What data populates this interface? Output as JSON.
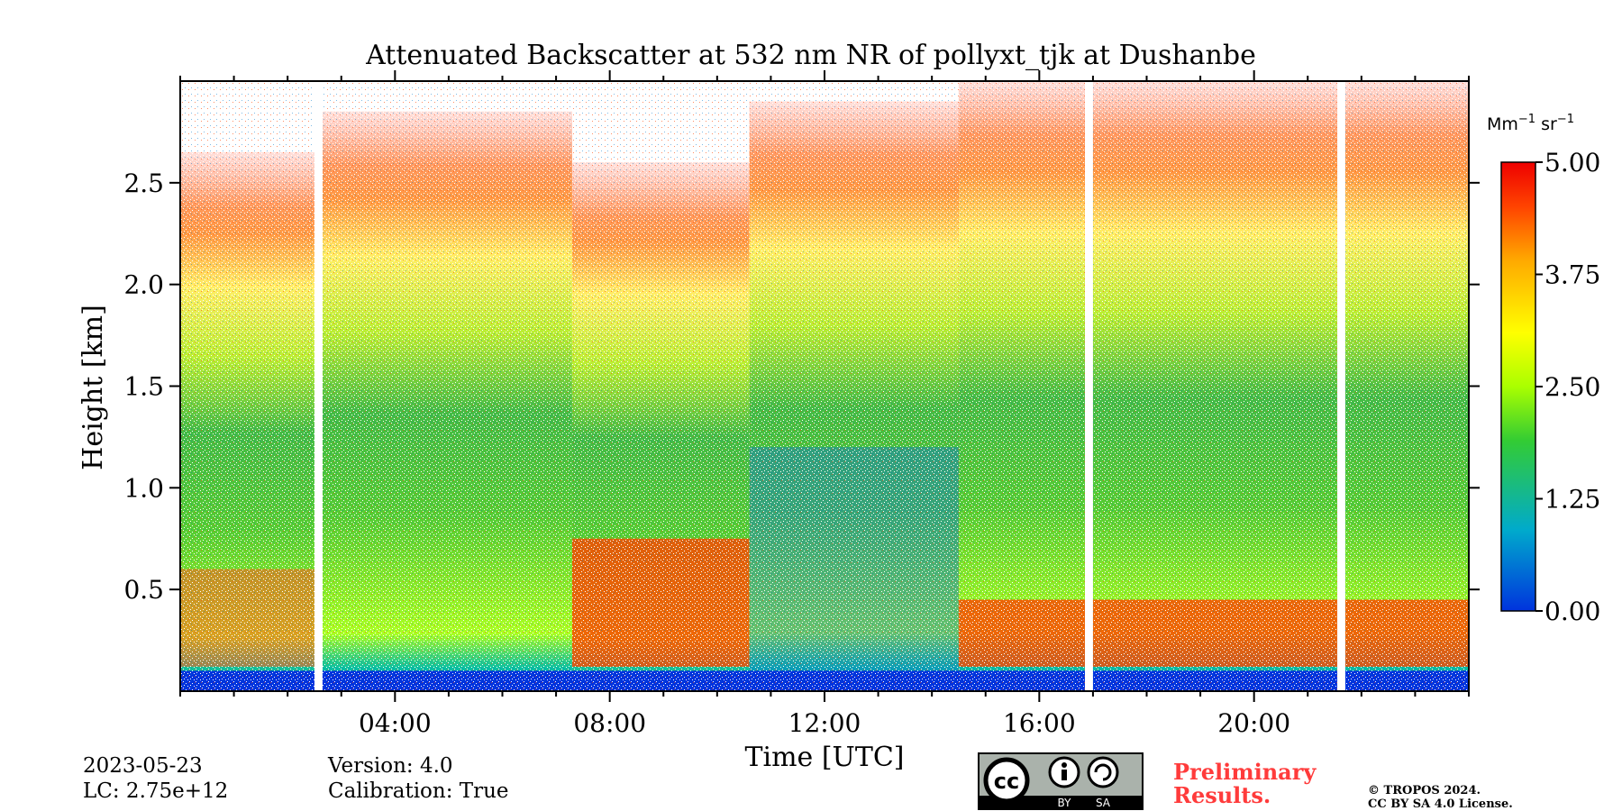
{
  "chart_data": {
    "type": "heatmap",
    "title": "Attenuated Backscatter at 532 nm NR of pollyxt_tjk at Dushanbe",
    "xlabel": "Time [UTC]",
    "ylabel": "Height [km]",
    "xlim": [
      0,
      24
    ],
    "ylim": [
      0,
      3.0
    ],
    "x_ticks": [
      "04:00",
      "08:00",
      "12:00",
      "16:00",
      "20:00"
    ],
    "x_tick_values": [
      4,
      8,
      12,
      16,
      20
    ],
    "y_ticks": [
      "0.5",
      "1.0",
      "1.5",
      "2.0",
      "2.5"
    ],
    "y_tick_values": [
      0.5,
      1.0,
      1.5,
      2.0,
      2.5
    ],
    "colorbar": {
      "unit_base": "Mm",
      "unit_exp1": "−1",
      "unit_mid": " sr",
      "unit_exp2": "−1",
      "min": 0.0,
      "max": 5.0,
      "ticks": [
        "0.00",
        "1.25",
        "2.50",
        "3.75",
        "5.00"
      ],
      "tick_values": [
        0.0,
        1.25,
        2.5,
        3.75,
        5.0
      ],
      "colors": [
        "#0033dd",
        "#00aacc",
        "#33cc33",
        "#aaff00",
        "#ffff00",
        "#ffaa00",
        "#ff4400",
        "#ee0000"
      ]
    },
    "data_gaps_hours": [
      [
        2.5,
        2.65
      ],
      [
        16.85,
        17.0
      ],
      [
        21.55,
        21.7
      ]
    ],
    "regions": [
      {
        "t0": 0.0,
        "t1": 2.5,
        "low_cloud_top_km": 0.6,
        "signal_top_km": 2.65
      },
      {
        "t0": 2.65,
        "t1": 7.3,
        "signal_top_km": 2.85
      },
      {
        "t0": 7.3,
        "t1": 10.6,
        "aerosol_top_km": 0.75,
        "signal_top_km": 2.6
      },
      {
        "t0": 10.6,
        "t1": 14.5,
        "clean_layer_top_km": 1.2,
        "signal_top_km": 2.9
      },
      {
        "t0": 14.5,
        "t1": 24.0,
        "aerosol_top_km": 0.45,
        "signal_top_km": 3.0
      }
    ]
  },
  "footer": {
    "date": "2023-05-23",
    "lc": "LC: 2.75e+12",
    "version": "Version: 4.0",
    "calibration": "Calibration: True",
    "preliminary_line1": "Preliminary",
    "preliminary_line2": "Results.",
    "copyright_line1": "© TROPOS 2024.",
    "copyright_line2": "CC BY SA 4.0 License.",
    "license_badge": {
      "cc": "cc",
      "by": "BY",
      "sa": "SA"
    }
  },
  "colors": {
    "preliminary": "#ff3b3b"
  }
}
